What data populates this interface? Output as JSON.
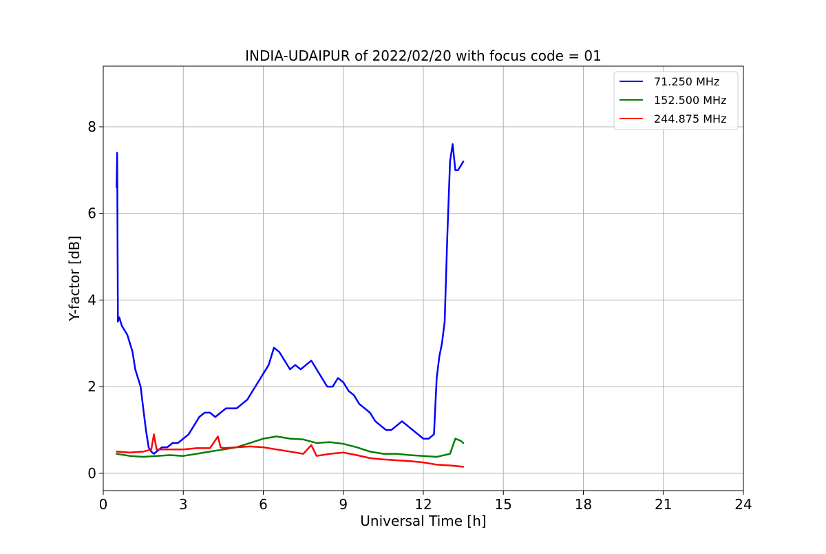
{
  "chart_data": {
    "type": "line",
    "title": "INDIA-UDAIPUR of 2022/02/20 with focus code = 01",
    "xlabel": "Universal Time [h]",
    "ylabel": "Y-factor [dB]",
    "xlim": [
      0,
      24
    ],
    "ylim": [
      -0.4,
      9.4
    ],
    "xticks": [
      0,
      3,
      6,
      9,
      12,
      15,
      18,
      21,
      24
    ],
    "yticks": [
      0,
      2,
      4,
      6,
      8
    ],
    "grid": true,
    "legend_position": "top-right",
    "series": [
      {
        "name": "71.250 MHz",
        "color": "#0000ff",
        "x": [
          0.5,
          0.52,
          0.55,
          0.6,
          0.7,
          0.8,
          0.9,
          1.0,
          1.1,
          1.2,
          1.3,
          1.4,
          1.5,
          1.6,
          1.7,
          1.8,
          1.9,
          2.0,
          2.2,
          2.4,
          2.6,
          2.8,
          3.0,
          3.2,
          3.4,
          3.6,
          3.8,
          4.0,
          4.2,
          4.4,
          4.6,
          4.8,
          5.0,
          5.2,
          5.4,
          5.6,
          5.8,
          6.0,
          6.2,
          6.4,
          6.6,
          6.8,
          7.0,
          7.2,
          7.4,
          7.6,
          7.8,
          8.0,
          8.2,
          8.4,
          8.6,
          8.8,
          9.0,
          9.2,
          9.4,
          9.6,
          9.8,
          10.0,
          10.2,
          10.4,
          10.6,
          10.8,
          11.0,
          11.2,
          11.4,
          11.6,
          11.8,
          12.0,
          12.2,
          12.4,
          12.5,
          12.6,
          12.7,
          12.8,
          12.9,
          13.0,
          13.1,
          13.2,
          13.3,
          13.4,
          13.5
        ],
        "y": [
          6.6,
          7.4,
          3.5,
          3.6,
          3.4,
          3.3,
          3.2,
          3.0,
          2.8,
          2.4,
          2.2,
          2.0,
          1.5,
          1.0,
          0.6,
          0.5,
          0.45,
          0.5,
          0.6,
          0.6,
          0.7,
          0.7,
          0.8,
          0.9,
          1.1,
          1.3,
          1.4,
          1.4,
          1.3,
          1.4,
          1.5,
          1.5,
          1.5,
          1.6,
          1.7,
          1.9,
          2.1,
          2.3,
          2.5,
          2.9,
          2.8,
          2.6,
          2.4,
          2.5,
          2.4,
          2.5,
          2.6,
          2.4,
          2.2,
          2.0,
          2.0,
          2.2,
          2.1,
          1.9,
          1.8,
          1.6,
          1.5,
          1.4,
          1.2,
          1.1,
          1.0,
          1.0,
          1.1,
          1.2,
          1.1,
          1.0,
          0.9,
          0.8,
          0.8,
          0.9,
          2.2,
          2.7,
          3.0,
          3.5,
          5.5,
          7.2,
          7.6,
          7.0,
          7.0,
          7.1,
          7.2
        ]
      },
      {
        "name": "152.500 MHz",
        "color": "#008000",
        "x": [
          0.5,
          1.0,
          1.5,
          2.0,
          2.5,
          3.0,
          3.5,
          4.0,
          4.5,
          5.0,
          5.5,
          6.0,
          6.5,
          7.0,
          7.5,
          8.0,
          8.5,
          9.0,
          9.5,
          10.0,
          10.5,
          11.0,
          11.5,
          12.0,
          12.5,
          13.0,
          13.2,
          13.4,
          13.5
        ],
        "y": [
          0.45,
          0.4,
          0.38,
          0.4,
          0.42,
          0.4,
          0.45,
          0.5,
          0.55,
          0.6,
          0.7,
          0.8,
          0.85,
          0.8,
          0.78,
          0.7,
          0.72,
          0.68,
          0.6,
          0.5,
          0.45,
          0.45,
          0.42,
          0.4,
          0.38,
          0.45,
          0.8,
          0.75,
          0.7
        ]
      },
      {
        "name": "244.875 MHz",
        "color": "#ff0000",
        "x": [
          0.5,
          1.0,
          1.5,
          1.8,
          1.9,
          2.0,
          2.5,
          3.0,
          3.5,
          4.0,
          4.3,
          4.4,
          4.5,
          5.0,
          5.5,
          6.0,
          6.5,
          7.0,
          7.5,
          7.8,
          8.0,
          8.5,
          9.0,
          9.5,
          10.0,
          10.5,
          11.0,
          11.5,
          12.0,
          12.5,
          13.0,
          13.5
        ],
        "y": [
          0.5,
          0.48,
          0.5,
          0.55,
          0.9,
          0.55,
          0.55,
          0.55,
          0.58,
          0.58,
          0.85,
          0.6,
          0.58,
          0.6,
          0.62,
          0.6,
          0.55,
          0.5,
          0.45,
          0.65,
          0.4,
          0.45,
          0.48,
          0.42,
          0.35,
          0.32,
          0.3,
          0.28,
          0.25,
          0.2,
          0.18,
          0.15
        ]
      }
    ]
  }
}
